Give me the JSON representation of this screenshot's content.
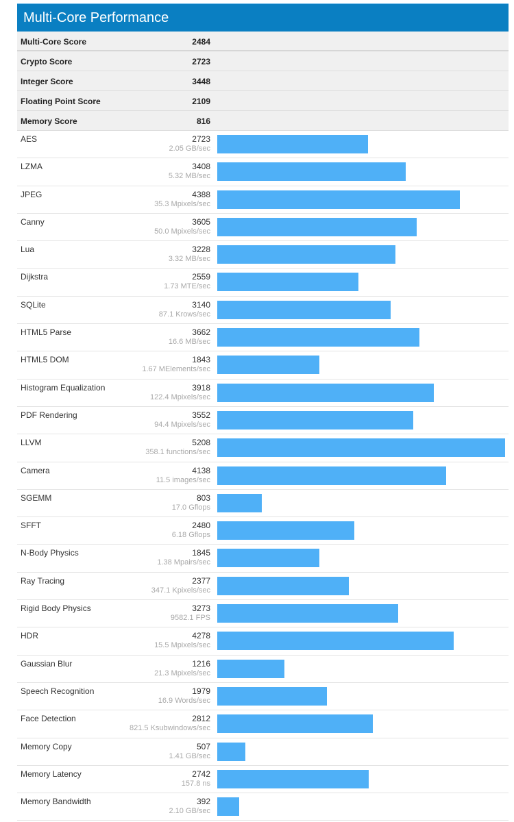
{
  "header": {
    "title": "Multi-Core Performance"
  },
  "colors": {
    "header_bg": "#0a7fc2",
    "bar": "#4fb0f7",
    "summary_bg": "#f0f0f0"
  },
  "summary": [
    {
      "label": "Multi-Core Score",
      "value": "2484"
    },
    {
      "label": "Crypto Score",
      "value": "2723"
    },
    {
      "label": "Integer Score",
      "value": "3448"
    },
    {
      "label": "Floating Point Score",
      "value": "2109"
    },
    {
      "label": "Memory Score",
      "value": "816"
    }
  ],
  "benchmarks": [
    {
      "name": "AES",
      "score": "2723",
      "unit": "2.05 GB/sec"
    },
    {
      "name": "LZMA",
      "score": "3408",
      "unit": "5.32 MB/sec"
    },
    {
      "name": "JPEG",
      "score": "4388",
      "unit": "35.3 Mpixels/sec"
    },
    {
      "name": "Canny",
      "score": "3605",
      "unit": "50.0 Mpixels/sec"
    },
    {
      "name": "Lua",
      "score": "3228",
      "unit": "3.32 MB/sec"
    },
    {
      "name": "Dijkstra",
      "score": "2559",
      "unit": "1.73 MTE/sec"
    },
    {
      "name": "SQLite",
      "score": "3140",
      "unit": "87.1 Krows/sec"
    },
    {
      "name": "HTML5 Parse",
      "score": "3662",
      "unit": "16.6 MB/sec"
    },
    {
      "name": "HTML5 DOM",
      "score": "1843",
      "unit": "1.67 MElements/sec"
    },
    {
      "name": "Histogram Equalization",
      "score": "3918",
      "unit": "122.4 Mpixels/sec"
    },
    {
      "name": "PDF Rendering",
      "score": "3552",
      "unit": "94.4 Mpixels/sec"
    },
    {
      "name": "LLVM",
      "score": "5208",
      "unit": "358.1 functions/sec"
    },
    {
      "name": "Camera",
      "score": "4138",
      "unit": "11.5 images/sec"
    },
    {
      "name": "SGEMM",
      "score": "803",
      "unit": "17.0 Gflops"
    },
    {
      "name": "SFFT",
      "score": "2480",
      "unit": "6.18 Gflops"
    },
    {
      "name": "N-Body Physics",
      "score": "1845",
      "unit": "1.38 Mpairs/sec"
    },
    {
      "name": "Ray Tracing",
      "score": "2377",
      "unit": "347.1 Kpixels/sec"
    },
    {
      "name": "Rigid Body Physics",
      "score": "3273",
      "unit": "9582.1 FPS"
    },
    {
      "name": "HDR",
      "score": "4278",
      "unit": "15.5 Mpixels/sec"
    },
    {
      "name": "Gaussian Blur",
      "score": "1216",
      "unit": "21.3 Mpixels/sec"
    },
    {
      "name": "Speech Recognition",
      "score": "1979",
      "unit": "16.9 Words/sec"
    },
    {
      "name": "Face Detection",
      "score": "2812",
      "unit": "821.5 Ksubwindows/sec"
    },
    {
      "name": "Memory Copy",
      "score": "507",
      "unit": "1.41 GB/sec"
    },
    {
      "name": "Memory Latency",
      "score": "2742",
      "unit": "157.8 ns"
    },
    {
      "name": "Memory Bandwidth",
      "score": "392",
      "unit": "2.10 GB/sec"
    }
  ],
  "chart_data": {
    "type": "bar",
    "orientation": "horizontal",
    "title": "Multi-Core Performance",
    "xlabel": "",
    "ylabel": "",
    "grid": false,
    "legend": "none",
    "xlim": [
      0,
      5208
    ],
    "summary_scores": {
      "Multi-Core Score": 2484,
      "Crypto Score": 2723,
      "Integer Score": 3448,
      "Floating Point Score": 2109,
      "Memory Score": 816
    },
    "categories": [
      "AES",
      "LZMA",
      "JPEG",
      "Canny",
      "Lua",
      "Dijkstra",
      "SQLite",
      "HTML5 Parse",
      "HTML5 DOM",
      "Histogram Equalization",
      "PDF Rendering",
      "LLVM",
      "Camera",
      "SGEMM",
      "SFFT",
      "N-Body Physics",
      "Ray Tracing",
      "Rigid Body Physics",
      "HDR",
      "Gaussian Blur",
      "Speech Recognition",
      "Face Detection",
      "Memory Copy",
      "Memory Latency",
      "Memory Bandwidth"
    ],
    "values": [
      2723,
      3408,
      4388,
      3605,
      3228,
      2559,
      3140,
      3662,
      1843,
      3918,
      3552,
      5208,
      4138,
      803,
      2480,
      1845,
      2377,
      3273,
      4278,
      1216,
      1979,
      2812,
      507,
      2742,
      392
    ],
    "annotations": [
      "2.05 GB/sec",
      "5.32 MB/sec",
      "35.3 Mpixels/sec",
      "50.0 Mpixels/sec",
      "3.32 MB/sec",
      "1.73 MTE/sec",
      "87.1 Krows/sec",
      "16.6 MB/sec",
      "1.67 MElements/sec",
      "122.4 Mpixels/sec",
      "94.4 Mpixels/sec",
      "358.1 functions/sec",
      "11.5 images/sec",
      "17.0 Gflops",
      "6.18 Gflops",
      "1.38 Mpairs/sec",
      "347.1 Kpixels/sec",
      "9582.1 FPS",
      "15.5 Mpixels/sec",
      "21.3 Mpixels/sec",
      "16.9 Words/sec",
      "821.5 Ksubwindows/sec",
      "1.41 GB/sec",
      "157.8 ns",
      "2.10 GB/sec"
    ]
  }
}
